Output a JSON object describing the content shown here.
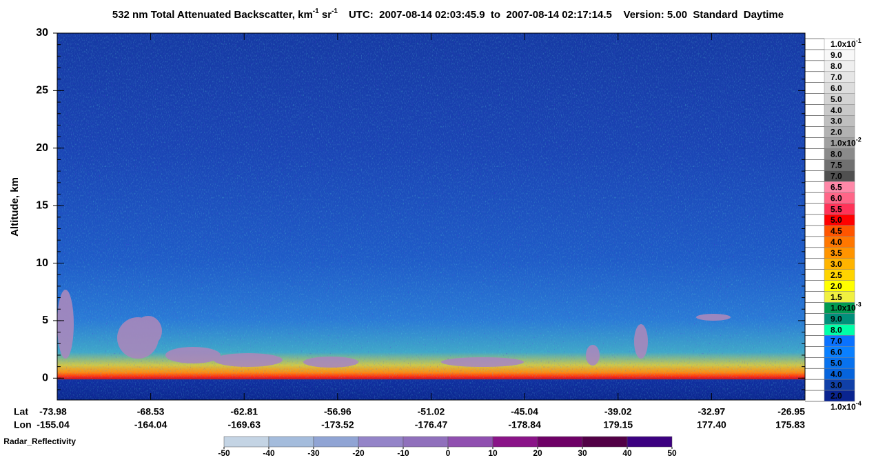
{
  "chart_data": {
    "type": "heatmap",
    "title": {
      "main": "532 nm Total Attenuated Backscatter, km",
      "sup1": "-1",
      "mid": " sr",
      "sup2": "-1",
      "info": "UTC:  2007-08-14 02:03:45.9  to  2007-08-14 02:17:14.5    Version: 5.00  Standard  Daytime"
    },
    "ylabel": "Altitude, km",
    "ylim": [
      -1.9,
      30
    ],
    "yticks": [
      0,
      5,
      10,
      15,
      20,
      25,
      30
    ],
    "x_rows": [
      {
        "name": "Lat",
        "labels": [
          "-73.98",
          "-68.53",
          "-62.81",
          "-56.96",
          "-51.02",
          "-45.04",
          "-39.02",
          "-32.97",
          "-26.95"
        ]
      },
      {
        "name": "Lon",
        "labels": [
          "-155.04",
          "-164.04",
          "-169.63",
          "-173.52",
          "-176.47",
          "-178.84",
          "179.15",
          "177.40",
          "175.83"
        ]
      }
    ],
    "colorbar": {
      "labels": [
        {
          "text": "1.0x10",
          "sup": "-1"
        },
        "9.0",
        "8.0",
        "7.0",
        "6.0",
        "5.0",
        "4.0",
        "3.0",
        "2.0",
        {
          "text": "1.0x10",
          "sup": "-2"
        },
        "8.0",
        "7.5",
        "7.0",
        "6.5",
        "6.0",
        "5.5",
        "5.0",
        "4.5",
        "4.0",
        "3.5",
        "3.0",
        "2.5",
        "2.0",
        "1.5",
        {
          "text": "1.0x10",
          "sup": "-3"
        },
        "9.0",
        "8.0",
        "7.0",
        "6.0",
        "5.0",
        "4.0",
        "3.0",
        "2.0",
        {
          "text": "1.0x10",
          "sup": "-4"
        }
      ],
      "colors": [
        "#ffffff",
        "#f8f8f8",
        "#efefef",
        "#e6e6e6",
        "#dddddd",
        "#d3d3d3",
        "#c9c9c9",
        "#bfbfbf",
        "#b2b2b2",
        "#a0a0a0",
        "#8a8a8a",
        "#707070",
        "#505050",
        "#ff88a8",
        "#ff6688",
        "#ff3358",
        "#ff0000",
        "#ff5500",
        "#ff7700",
        "#ff9400",
        "#ffb400",
        "#ffd400",
        "#ffff00",
        "#f0f040",
        "#009a50",
        "#00907a",
        "#00ffa8",
        "#0a72ff",
        "#0a80ff",
        "#0872ee",
        "#0664dc",
        "#1040a8",
        "#0a2490"
      ]
    },
    "radar_colorbar": {
      "label": "Radar_Reflectivity",
      "ticks": [
        -50,
        -40,
        -30,
        -20,
        -10,
        0,
        10,
        20,
        30,
        40,
        50
      ],
      "colors": [
        "#c4d4e4",
        "#a4bcdc",
        "#90a4d4",
        "#9484c8",
        "#9070bc",
        "#9050b0",
        "#8a1488",
        "#6e0066",
        "#520046",
        "#3c0080"
      ]
    }
  }
}
